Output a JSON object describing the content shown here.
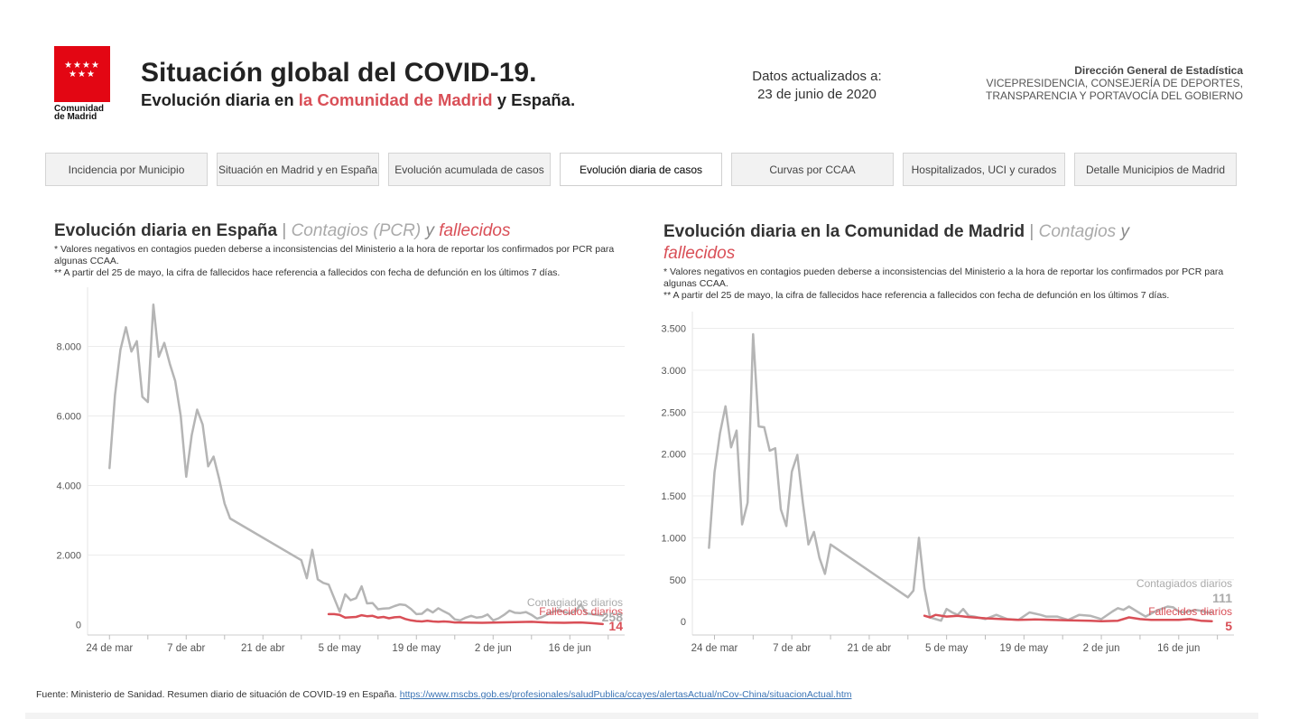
{
  "logo": {
    "stars": "★★★★\n★★★",
    "name": "Comunidad\nde Madrid"
  },
  "header": {
    "title": "Situación global del COVID-19.",
    "subtitle_prefix": "Evolución diaria en ",
    "subtitle_highlight": "la Comunidad de Madrid",
    "subtitle_suffix": " y España.",
    "updated_label": "Datos actualizados a:",
    "updated_date": "23 de junio de 2020",
    "agency_line1": "Dirección General de Estadística",
    "agency_line2": "VICEPRESIDENCIA, CONSEJERÍA DE DEPORTES,",
    "agency_line3": "TRANSPARENCIA Y PORTAVOCÍA DEL GOBIERNO"
  },
  "tabs": [
    {
      "label": "Incidencia por Municipio",
      "active": false
    },
    {
      "label": "Situación en Madrid y en España",
      "active": false
    },
    {
      "label": "Evolución acumulada de casos",
      "active": false
    },
    {
      "label": "Evolución diaria de casos",
      "active": true
    },
    {
      "label": "Curvas por CCAA",
      "active": false
    },
    {
      "label": "Hospitalizados, UCI y curados",
      "active": false
    },
    {
      "label": "Detalle Municipios de Madrid",
      "active": false
    }
  ],
  "panels": {
    "spain": {
      "title_main": "Evolución diaria en España",
      "title_sep": " | ",
      "title_contagios": "Contagios (PCR)",
      "title_y": " y ",
      "title_fallecidos": "fallecidos",
      "note1": "* Valores negativos en contagios pueden deberse a inconsistencias del Ministerio a la hora de reportar los confirmados por PCR para algunas CCAA.",
      "note2": "** A partir del 25 de mayo, la cifra de fallecidos hace referencia a fallecidos con fecha de defunción en los últimos 7 días.",
      "label_contagios": "Contagiados diarios",
      "label_fallecidos": "Fallecidos diarios",
      "last_contagios": "258",
      "last_fallecidos": "14"
    },
    "madrid": {
      "title_main": "Evolución diaria en la Comunidad de Madrid",
      "title_sep": " | ",
      "title_contagios": "Contagios",
      "title_y": " y",
      "title_fallecidos": "fallecidos",
      "note1": "* Valores negativos en contagios pueden deberse a inconsistencias del Ministerio a la hora de reportar los confirmados por PCR para algunas CCAA.",
      "note2": "** A partir del 25 de mayo, la cifra de fallecidos hace referencia a fallecidos con fecha de defunción en los últimos 7 días.",
      "label_contagios": "Contagiados diarios",
      "label_fallecidos": "Fallecidos diarios",
      "last_contagios": "111",
      "last_fallecidos": "5"
    }
  },
  "source": {
    "text": "Fuente: Ministerio de Sanidad. Resumen diario de situación de COVID-19 en España. ",
    "link": "https://www.mscbs.gob.es/profesionales/saludPublica/ccayes/alertasActual/nCov-China/situacionActual.htm"
  },
  "chart_data": [
    {
      "type": "line",
      "x_unit": "day",
      "xticks": [
        "2020-03-24",
        "2020-04-07",
        "2020-04-21",
        "2020-05-05",
        "2020-05-19",
        "2020-06-02",
        "2020-06-16"
      ],
      "xtick_labels": [
        "24 de mar",
        "7 de abr",
        "21 de abr",
        "5 de may",
        "19 de may",
        "2 de jun",
        "16 de jun"
      ],
      "xlim": [
        "2020-03-20",
        "2020-06-26"
      ],
      "yticks": [
        0,
        2000,
        4000,
        6000,
        8000
      ],
      "ytick_labels": [
        "0",
        "2.000",
        "4.000",
        "6.000",
        "8.000"
      ],
      "ylim": [
        -300,
        9700
      ],
      "grid": true,
      "series": [
        {
          "name": "Contagiados diarios",
          "color": "#b5b5b5",
          "points": [
            [
              "2020-03-24",
              4500
            ],
            [
              "2020-03-25",
              6600
            ],
            [
              "2020-03-26",
              7900
            ],
            [
              "2020-03-27",
              8550
            ],
            [
              "2020-03-28",
              7850
            ],
            [
              "2020-03-29",
              8150
            ],
            [
              "2020-03-30",
              6550
            ],
            [
              "2020-03-31",
              6400
            ],
            [
              "2020-04-01",
              9200
            ],
            [
              "2020-04-02",
              7700
            ],
            [
              "2020-04-03",
              8100
            ],
            [
              "2020-04-04",
              7500
            ],
            [
              "2020-04-05",
              7000
            ],
            [
              "2020-04-06",
              6000
            ],
            [
              "2020-04-07",
              4250
            ],
            [
              "2020-04-08",
              5450
            ],
            [
              "2020-04-09",
              6180
            ],
            [
              "2020-04-10",
              5750
            ],
            [
              "2020-04-11",
              4550
            ],
            [
              "2020-04-12",
              4830
            ],
            [
              "2020-04-13",
              4200
            ],
            [
              "2020-04-14",
              3480
            ],
            [
              "2020-04-15",
              3050
            ],
            [
              "2020-04-28",
              1850
            ],
            [
              "2020-04-29",
              1330
            ],
            [
              "2020-04-30",
              2150
            ],
            [
              "2020-05-01",
              1300
            ],
            [
              "2020-05-02",
              1200
            ],
            [
              "2020-05-03",
              1150
            ],
            [
              "2020-05-04",
              760
            ],
            [
              "2020-05-05",
              370
            ],
            [
              "2020-05-06",
              870
            ],
            [
              "2020-05-07",
              700
            ],
            [
              "2020-05-08",
              760
            ],
            [
              "2020-05-09",
              1100
            ],
            [
              "2020-05-10",
              610
            ],
            [
              "2020-05-11",
              620
            ],
            [
              "2020-05-12",
              440
            ],
            [
              "2020-05-13",
              460
            ],
            [
              "2020-05-14",
              470
            ],
            [
              "2020-05-15",
              530
            ],
            [
              "2020-05-16",
              580
            ],
            [
              "2020-05-17",
              560
            ],
            [
              "2020-05-18",
              450
            ],
            [
              "2020-05-19",
              300
            ],
            [
              "2020-05-20",
              310
            ],
            [
              "2020-05-21",
              440
            ],
            [
              "2020-05-22",
              350
            ],
            [
              "2020-05-23",
              470
            ],
            [
              "2020-05-24",
              380
            ],
            [
              "2020-05-25",
              300
            ],
            [
              "2020-05-26",
              150
            ],
            [
              "2020-05-27",
              120
            ],
            [
              "2020-05-28",
              200
            ],
            [
              "2020-05-29",
              250
            ],
            [
              "2020-05-30",
              200
            ],
            [
              "2020-05-31",
              220
            ],
            [
              "2020-06-01",
              290
            ],
            [
              "2020-06-02",
              120
            ],
            [
              "2020-06-03",
              180
            ],
            [
              "2020-06-04",
              280
            ],
            [
              "2020-06-05",
              400
            ],
            [
              "2020-06-06",
              340
            ],
            [
              "2020-06-07",
              330
            ],
            [
              "2020-06-08",
              360
            ],
            [
              "2020-06-09",
              280
            ],
            [
              "2020-06-10",
              170
            ],
            [
              "2020-06-11",
              220
            ],
            [
              "2020-06-12",
              300
            ],
            [
              "2020-06-13",
              370
            ],
            [
              "2020-06-14",
              420
            ],
            [
              "2020-06-15",
              360
            ],
            [
              "2020-06-16",
              320
            ],
            [
              "2020-06-17",
              380
            ],
            [
              "2020-06-18",
              580
            ],
            [
              "2020-06-19",
              320
            ],
            [
              "2020-06-20",
              300
            ],
            [
              "2020-06-21",
              280
            ],
            [
              "2020-06-22",
              258
            ]
          ]
        },
        {
          "name": "Fallecidos diarios",
          "color": "#d94f57",
          "points": [
            [
              "2020-05-03",
              300
            ],
            [
              "2020-05-04",
              300
            ],
            [
              "2020-05-05",
              280
            ],
            [
              "2020-05-06",
              200
            ],
            [
              "2020-05-07",
              210
            ],
            [
              "2020-05-08",
              220
            ],
            [
              "2020-05-09",
              270
            ],
            [
              "2020-05-10",
              240
            ],
            [
              "2020-05-11",
              250
            ],
            [
              "2020-05-12",
              200
            ],
            [
              "2020-05-13",
              220
            ],
            [
              "2020-05-14",
              180
            ],
            [
              "2020-05-15",
              210
            ],
            [
              "2020-05-16",
              220
            ],
            [
              "2020-05-17",
              160
            ],
            [
              "2020-05-18",
              120
            ],
            [
              "2020-05-19",
              100
            ],
            [
              "2020-05-20",
              90
            ],
            [
              "2020-05-21",
              110
            ],
            [
              "2020-05-22",
              90
            ],
            [
              "2020-05-23",
              80
            ],
            [
              "2020-05-24",
              90
            ],
            [
              "2020-05-25",
              80
            ],
            [
              "2020-05-26",
              60
            ],
            [
              "2020-05-28",
              55
            ],
            [
              "2020-05-31",
              50
            ],
            [
              "2020-06-03",
              60
            ],
            [
              "2020-06-06",
              70
            ],
            [
              "2020-06-09",
              80
            ],
            [
              "2020-06-12",
              55
            ],
            [
              "2020-06-15",
              50
            ],
            [
              "2020-06-18",
              60
            ],
            [
              "2020-06-20",
              40
            ],
            [
              "2020-06-22",
              14
            ]
          ]
        }
      ]
    },
    {
      "type": "line",
      "x_unit": "day",
      "xticks": [
        "2020-03-24",
        "2020-04-07",
        "2020-04-21",
        "2020-05-05",
        "2020-05-19",
        "2020-06-02",
        "2020-06-16"
      ],
      "xtick_labels": [
        "24 de mar",
        "7 de abr",
        "21 de abr",
        "5 de may",
        "19 de may",
        "2 de jun",
        "16 de jun"
      ],
      "xlim": [
        "2020-03-20",
        "2020-06-26"
      ],
      "yticks": [
        0,
        500,
        1000,
        1500,
        2000,
        2500,
        3000,
        3500
      ],
      "ytick_labels": [
        "0",
        "500",
        "1.000",
        "1.500",
        "2.000",
        "2.500",
        "3.000",
        "3.500"
      ],
      "ylim": [
        -160,
        3700
      ],
      "grid": true,
      "series": [
        {
          "name": "Contagiados diarios",
          "color": "#b5b5b5",
          "points": [
            [
              "2020-03-23",
              880
            ],
            [
              "2020-03-24",
              1780
            ],
            [
              "2020-03-25",
              2250
            ],
            [
              "2020-03-26",
              2570
            ],
            [
              "2020-03-27",
              2080
            ],
            [
              "2020-03-28",
              2280
            ],
            [
              "2020-03-29",
              1160
            ],
            [
              "2020-03-30",
              1420
            ],
            [
              "2020-03-31",
              3430
            ],
            [
              "2020-04-01",
              2330
            ],
            [
              "2020-04-02",
              2320
            ],
            [
              "2020-04-03",
              2040
            ],
            [
              "2020-04-04",
              2070
            ],
            [
              "2020-04-05",
              1340
            ],
            [
              "2020-04-06",
              1140
            ],
            [
              "2020-04-07",
              1790
            ],
            [
              "2020-04-08",
              1990
            ],
            [
              "2020-04-09",
              1420
            ],
            [
              "2020-04-10",
              920
            ],
            [
              "2020-04-11",
              1070
            ],
            [
              "2020-04-12",
              760
            ],
            [
              "2020-04-13",
              570
            ],
            [
              "2020-04-14",
              920
            ],
            [
              "2020-04-28",
              290
            ],
            [
              "2020-04-29",
              370
            ],
            [
              "2020-04-30",
              1000
            ],
            [
              "2020-05-01",
              400
            ],
            [
              "2020-05-02",
              50
            ],
            [
              "2020-05-04",
              10
            ],
            [
              "2020-05-05",
              150
            ],
            [
              "2020-05-06",
              110
            ],
            [
              "2020-05-07",
              80
            ],
            [
              "2020-05-08",
              150
            ],
            [
              "2020-05-09",
              70
            ],
            [
              "2020-05-10",
              60
            ],
            [
              "2020-05-12",
              30
            ],
            [
              "2020-05-14",
              80
            ],
            [
              "2020-05-16",
              30
            ],
            [
              "2020-05-18",
              20
            ],
            [
              "2020-05-20",
              110
            ],
            [
              "2020-05-22",
              80
            ],
            [
              "2020-05-23",
              60
            ],
            [
              "2020-05-25",
              60
            ],
            [
              "2020-05-27",
              20
            ],
            [
              "2020-05-29",
              80
            ],
            [
              "2020-05-31",
              70
            ],
            [
              "2020-06-02",
              30
            ],
            [
              "2020-06-04",
              120
            ],
            [
              "2020-06-05",
              160
            ],
            [
              "2020-06-06",
              140
            ],
            [
              "2020-06-07",
              180
            ],
            [
              "2020-06-09",
              100
            ],
            [
              "2020-06-10",
              60
            ],
            [
              "2020-06-12",
              130
            ],
            [
              "2020-06-14",
              180
            ],
            [
              "2020-06-15",
              170
            ],
            [
              "2020-06-16",
              120
            ],
            [
              "2020-06-17",
              110
            ],
            [
              "2020-06-19",
              140
            ],
            [
              "2020-06-20",
              130
            ],
            [
              "2020-06-21",
              110
            ],
            [
              "2020-06-22",
              111
            ]
          ]
        },
        {
          "name": "Fallecidos diarios",
          "color": "#d94f57",
          "points": [
            [
              "2020-05-01",
              70
            ],
            [
              "2020-05-02",
              50
            ],
            [
              "2020-05-03",
              80
            ],
            [
              "2020-05-05",
              60
            ],
            [
              "2020-05-07",
              70
            ],
            [
              "2020-05-09",
              55
            ],
            [
              "2020-05-12",
              40
            ],
            [
              "2020-05-15",
              30
            ],
            [
              "2020-05-18",
              20
            ],
            [
              "2020-05-21",
              25
            ],
            [
              "2020-05-24",
              20
            ],
            [
              "2020-05-27",
              15
            ],
            [
              "2020-05-31",
              10
            ],
            [
              "2020-06-02",
              5
            ],
            [
              "2020-06-05",
              10
            ],
            [
              "2020-06-07",
              50
            ],
            [
              "2020-06-09",
              30
            ],
            [
              "2020-06-11",
              20
            ],
            [
              "2020-06-13",
              20
            ],
            [
              "2020-06-16",
              20
            ],
            [
              "2020-06-18",
              30
            ],
            [
              "2020-06-20",
              10
            ],
            [
              "2020-06-22",
              5
            ]
          ]
        }
      ]
    }
  ]
}
